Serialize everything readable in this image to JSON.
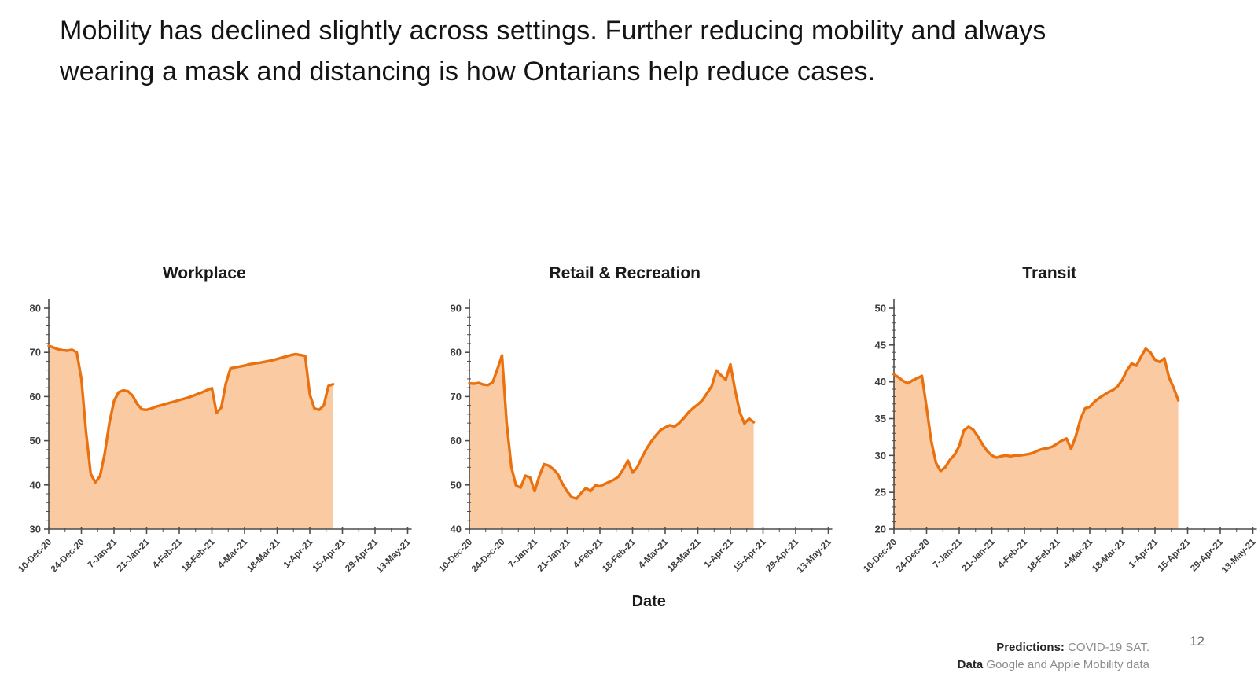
{
  "slide": {
    "headline": "Mobility has declined slightly across settings. Further reducing mobility and always wearing a mask and distancing is how Ontarians help reduce cases.",
    "page_number": "12",
    "footer": {
      "predictions_label": "Predictions:",
      "predictions_value": "COVID-19 SAT.",
      "data_label": "Data",
      "data_value": "Google and Apple Mobility data"
    }
  },
  "colors": {
    "line": "#E97110",
    "fill": "#FACBA3",
    "axis": "#4d4d4d",
    "tick_label": "#3d3d3d",
    "text": "#1a1a1a"
  },
  "chart_data": [
    {
      "type": "area",
      "title": "Workplace",
      "xlabel": "",
      "ylabel": "",
      "ylim": [
        30,
        80
      ],
      "y_major_tick": 10,
      "y_minor_tick": 2,
      "grid": false,
      "legend": false,
      "x_tick_labels": [
        "10-Dec-20",
        "24-Dec-20",
        "7-Jan-21",
        "21-Jan-21",
        "4-Feb-21",
        "18-Feb-21",
        "4-Mar-21",
        "18-Mar-21",
        "1-Apr-21",
        "15-Apr-21",
        "29-Apr-21",
        "13-May-21"
      ],
      "x_tick_interval_days": 14,
      "point_interval_days": 2,
      "series_start_label": "10-Dec-20",
      "values": [
        71.5,
        71.1,
        70.7,
        70.5,
        70.4,
        70.6,
        70.0,
        64.0,
        52.0,
        42.5,
        40.6,
        42.0,
        47.0,
        54.0,
        59.0,
        61.0,
        61.4,
        61.2,
        60.2,
        58.3,
        57.1,
        57.0,
        57.3,
        57.7,
        58.0,
        58.3,
        58.6,
        58.9,
        59.2,
        59.5,
        59.8,
        60.2,
        60.6,
        61.0,
        61.5,
        61.9,
        56.3,
        57.5,
        63.0,
        66.4,
        66.6,
        66.8,
        67.0,
        67.3,
        67.5,
        67.6,
        67.8,
        68.0,
        68.2,
        68.5,
        68.8,
        69.1,
        69.4,
        69.6,
        69.4,
        69.2,
        60.5,
        57.3,
        57.0,
        58.0,
        62.4,
        62.8
      ]
    },
    {
      "type": "area",
      "title": "Retail & Recreation",
      "xlabel": "Date",
      "ylabel": "",
      "ylim": [
        40,
        90
      ],
      "y_major_tick": 10,
      "y_minor_tick": 2,
      "grid": false,
      "legend": false,
      "x_tick_labels": [
        "10-Dec-20",
        "24-Dec-20",
        "7-Jan-21",
        "21-Jan-21",
        "4-Feb-21",
        "18-Feb-21",
        "4-Mar-21",
        "18-Mar-21",
        "1-Apr-21",
        "15-Apr-21",
        "29-Apr-21",
        "13-May-21"
      ],
      "x_tick_interval_days": 14,
      "point_interval_days": 2,
      "series_start_label": "10-Dec-20",
      "values": [
        73.0,
        72.9,
        73.1,
        72.7,
        72.6,
        73.2,
        76.2,
        79.3,
        64.0,
        54.0,
        49.9,
        49.4,
        52.1,
        51.7,
        48.6,
        52.0,
        54.7,
        54.4,
        53.6,
        52.4,
        50.2,
        48.5,
        47.2,
        46.9,
        48.2,
        49.3,
        48.6,
        49.9,
        49.7,
        50.2,
        50.7,
        51.2,
        51.9,
        53.5,
        55.5,
        52.8,
        54.0,
        56.2,
        58.2,
        59.8,
        61.2,
        62.4,
        63.0,
        63.5,
        63.2,
        64.0,
        65.1,
        66.4,
        67.4,
        68.2,
        69.2,
        70.8,
        72.4,
        75.9,
        74.8,
        73.8,
        77.3,
        71.5,
        66.5,
        63.9,
        65.0,
        64.2
      ]
    },
    {
      "type": "area",
      "title": "Transit",
      "xlabel": "",
      "ylabel": "",
      "ylim": [
        20,
        50
      ],
      "y_major_tick": 5,
      "y_minor_tick": 1,
      "grid": false,
      "legend": false,
      "x_tick_labels": [
        "10-Dec-20",
        "24-Dec-20",
        "7-Jan-21",
        "21-Jan-21",
        "4-Feb-21",
        "18-Feb-21",
        "4-Mar-21",
        "18-Mar-21",
        "1-Apr-21",
        "15-Apr-21",
        "29-Apr-21",
        "13-May-21"
      ],
      "x_tick_interval_days": 14,
      "point_interval_days": 2,
      "series_start_label": "10-Dec-20",
      "values": [
        41.0,
        40.6,
        40.1,
        39.8,
        40.2,
        40.5,
        40.8,
        36.5,
        32.0,
        29.0,
        27.9,
        28.4,
        29.4,
        30.1,
        31.3,
        33.4,
        33.9,
        33.5,
        32.6,
        31.5,
        30.6,
        30.0,
        29.7,
        29.9,
        30.0,
        29.9,
        30.0,
        30.0,
        30.1,
        30.2,
        30.4,
        30.7,
        30.9,
        31.0,
        31.2,
        31.6,
        32.0,
        32.3,
        30.9,
        32.6,
        34.9,
        36.4,
        36.6,
        37.3,
        37.8,
        38.2,
        38.6,
        38.9,
        39.4,
        40.3,
        41.6,
        42.5,
        42.2,
        43.4,
        44.5,
        44.0,
        43.0,
        42.7,
        43.2,
        40.6,
        39.2,
        37.5
      ]
    }
  ]
}
